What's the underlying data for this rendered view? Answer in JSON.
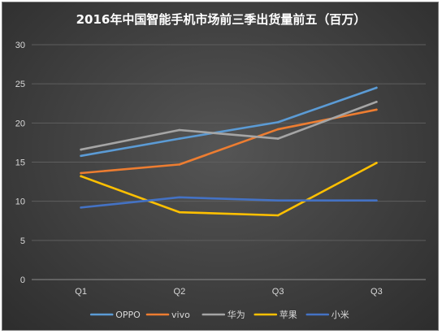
{
  "chart_data": {
    "type": "line",
    "title": "2016年中国智能手机市场前三季出货量前五（百万）",
    "categories": [
      "Q1",
      "Q2",
      "Q3",
      "Q3"
    ],
    "ylim": [
      0,
      30
    ],
    "yticks": [
      0,
      5,
      10,
      15,
      20,
      25,
      30
    ],
    "grid": true,
    "legend_position": "bottom",
    "series": [
      {
        "name": "OPPO",
        "values": [
          15.8,
          18.0,
          20.1,
          24.5
        ],
        "color": "#5b9bd5"
      },
      {
        "name": "vivo",
        "values": [
          13.6,
          14.7,
          19.2,
          21.7
        ],
        "color": "#ed7d31"
      },
      {
        "name": "华为",
        "values": [
          16.6,
          19.1,
          18.0,
          22.7
        ],
        "color": "#a5a5a5"
      },
      {
        "name": "苹果",
        "values": [
          13.2,
          8.6,
          8.2,
          14.9
        ],
        "color": "#ffc000"
      },
      {
        "name": "小米",
        "values": [
          9.2,
          10.5,
          10.1,
          10.1
        ],
        "color": "#4472c4"
      }
    ]
  }
}
